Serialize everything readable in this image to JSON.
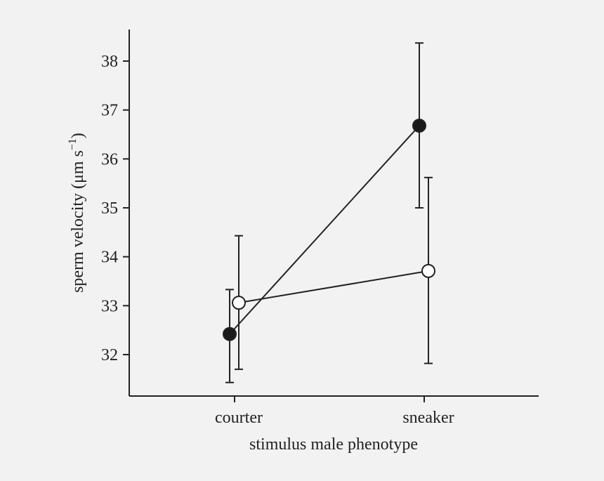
{
  "chart_data": {
    "type": "line",
    "title": "",
    "xlabel": "stimulus male phenotype",
    "ylabel_main": "sperm velocity (μm s",
    "ylabel_sup": "−1",
    "ylabel_close": ")",
    "categories": [
      "courter",
      "sneaker"
    ],
    "ylim": [
      31.2,
      38.65
    ],
    "yticks": [
      32,
      33,
      34,
      35,
      36,
      37,
      38
    ],
    "grid": false,
    "series": [
      {
        "name": "filled",
        "marker": "filled-circle",
        "values": [
          32.42,
          36.68
        ],
        "err_low": [
          31.43,
          35.0
        ],
        "err_high": [
          33.33,
          38.37
        ],
        "color": "#1a1a1a"
      },
      {
        "name": "open",
        "marker": "open-circle",
        "values": [
          33.06,
          33.71
        ],
        "err_low": [
          31.7,
          31.82
        ],
        "err_high": [
          34.43,
          35.62
        ],
        "color": "#ffffff"
      }
    ]
  }
}
